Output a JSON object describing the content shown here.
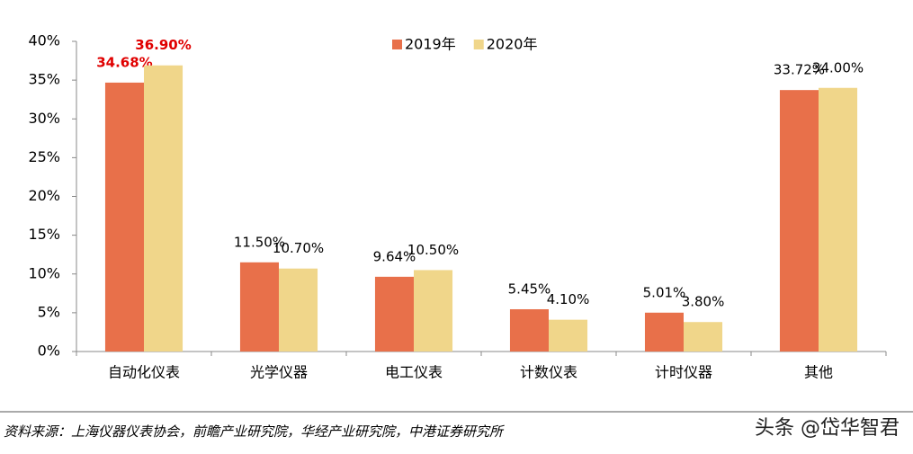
{
  "chart_data": {
    "type": "bar",
    "categories": [
      "自动化仪表",
      "光学仪器",
      "电工仪表",
      "计数仪表",
      "计时仪器",
      "其他"
    ],
    "series": [
      {
        "name": "2019年",
        "color": "#e8704a",
        "values": [
          34.68,
          11.5,
          9.64,
          5.45,
          5.01,
          33.72
        ],
        "value_labels": [
          "34.68%",
          "11.50%",
          "9.64%",
          "5.45%",
          "5.01%",
          "33.72%"
        ],
        "value_label_colors": [
          "#e00000",
          "#000000",
          "#000000",
          "#000000",
          "#000000",
          "#000000"
        ]
      },
      {
        "name": "2020年",
        "color": "#f0d68a",
        "values": [
          36.9,
          10.7,
          10.5,
          4.1,
          3.8,
          34.0
        ],
        "value_labels": [
          "36.90%",
          "10.70%",
          "10.50%",
          "4.10%",
          "3.80%",
          "34.00%"
        ],
        "value_label_colors": [
          "#e00000",
          "#000000",
          "#000000",
          "#000000",
          "#000000",
          "#000000"
        ]
      }
    ],
    "ylim": [
      0,
      40
    ],
    "yticks": [
      {
        "value": 0,
        "label": "0%"
      },
      {
        "value": 5,
        "label": "5%"
      },
      {
        "value": 10,
        "label": "10%"
      },
      {
        "value": 15,
        "label": "15%"
      },
      {
        "value": 20,
        "label": "20%"
      },
      {
        "value": 25,
        "label": "25%"
      },
      {
        "value": 30,
        "label": "30%"
      },
      {
        "value": 35,
        "label": "35%"
      },
      {
        "value": 40,
        "label": "40%"
      }
    ],
    "grid": false,
    "legend": "top",
    "source": "资料来源：上海仪器仪表协会，前瞻产业研究院，华经产业研究院，中港证券研究所",
    "watermark": "头条 @岱华智君"
  }
}
